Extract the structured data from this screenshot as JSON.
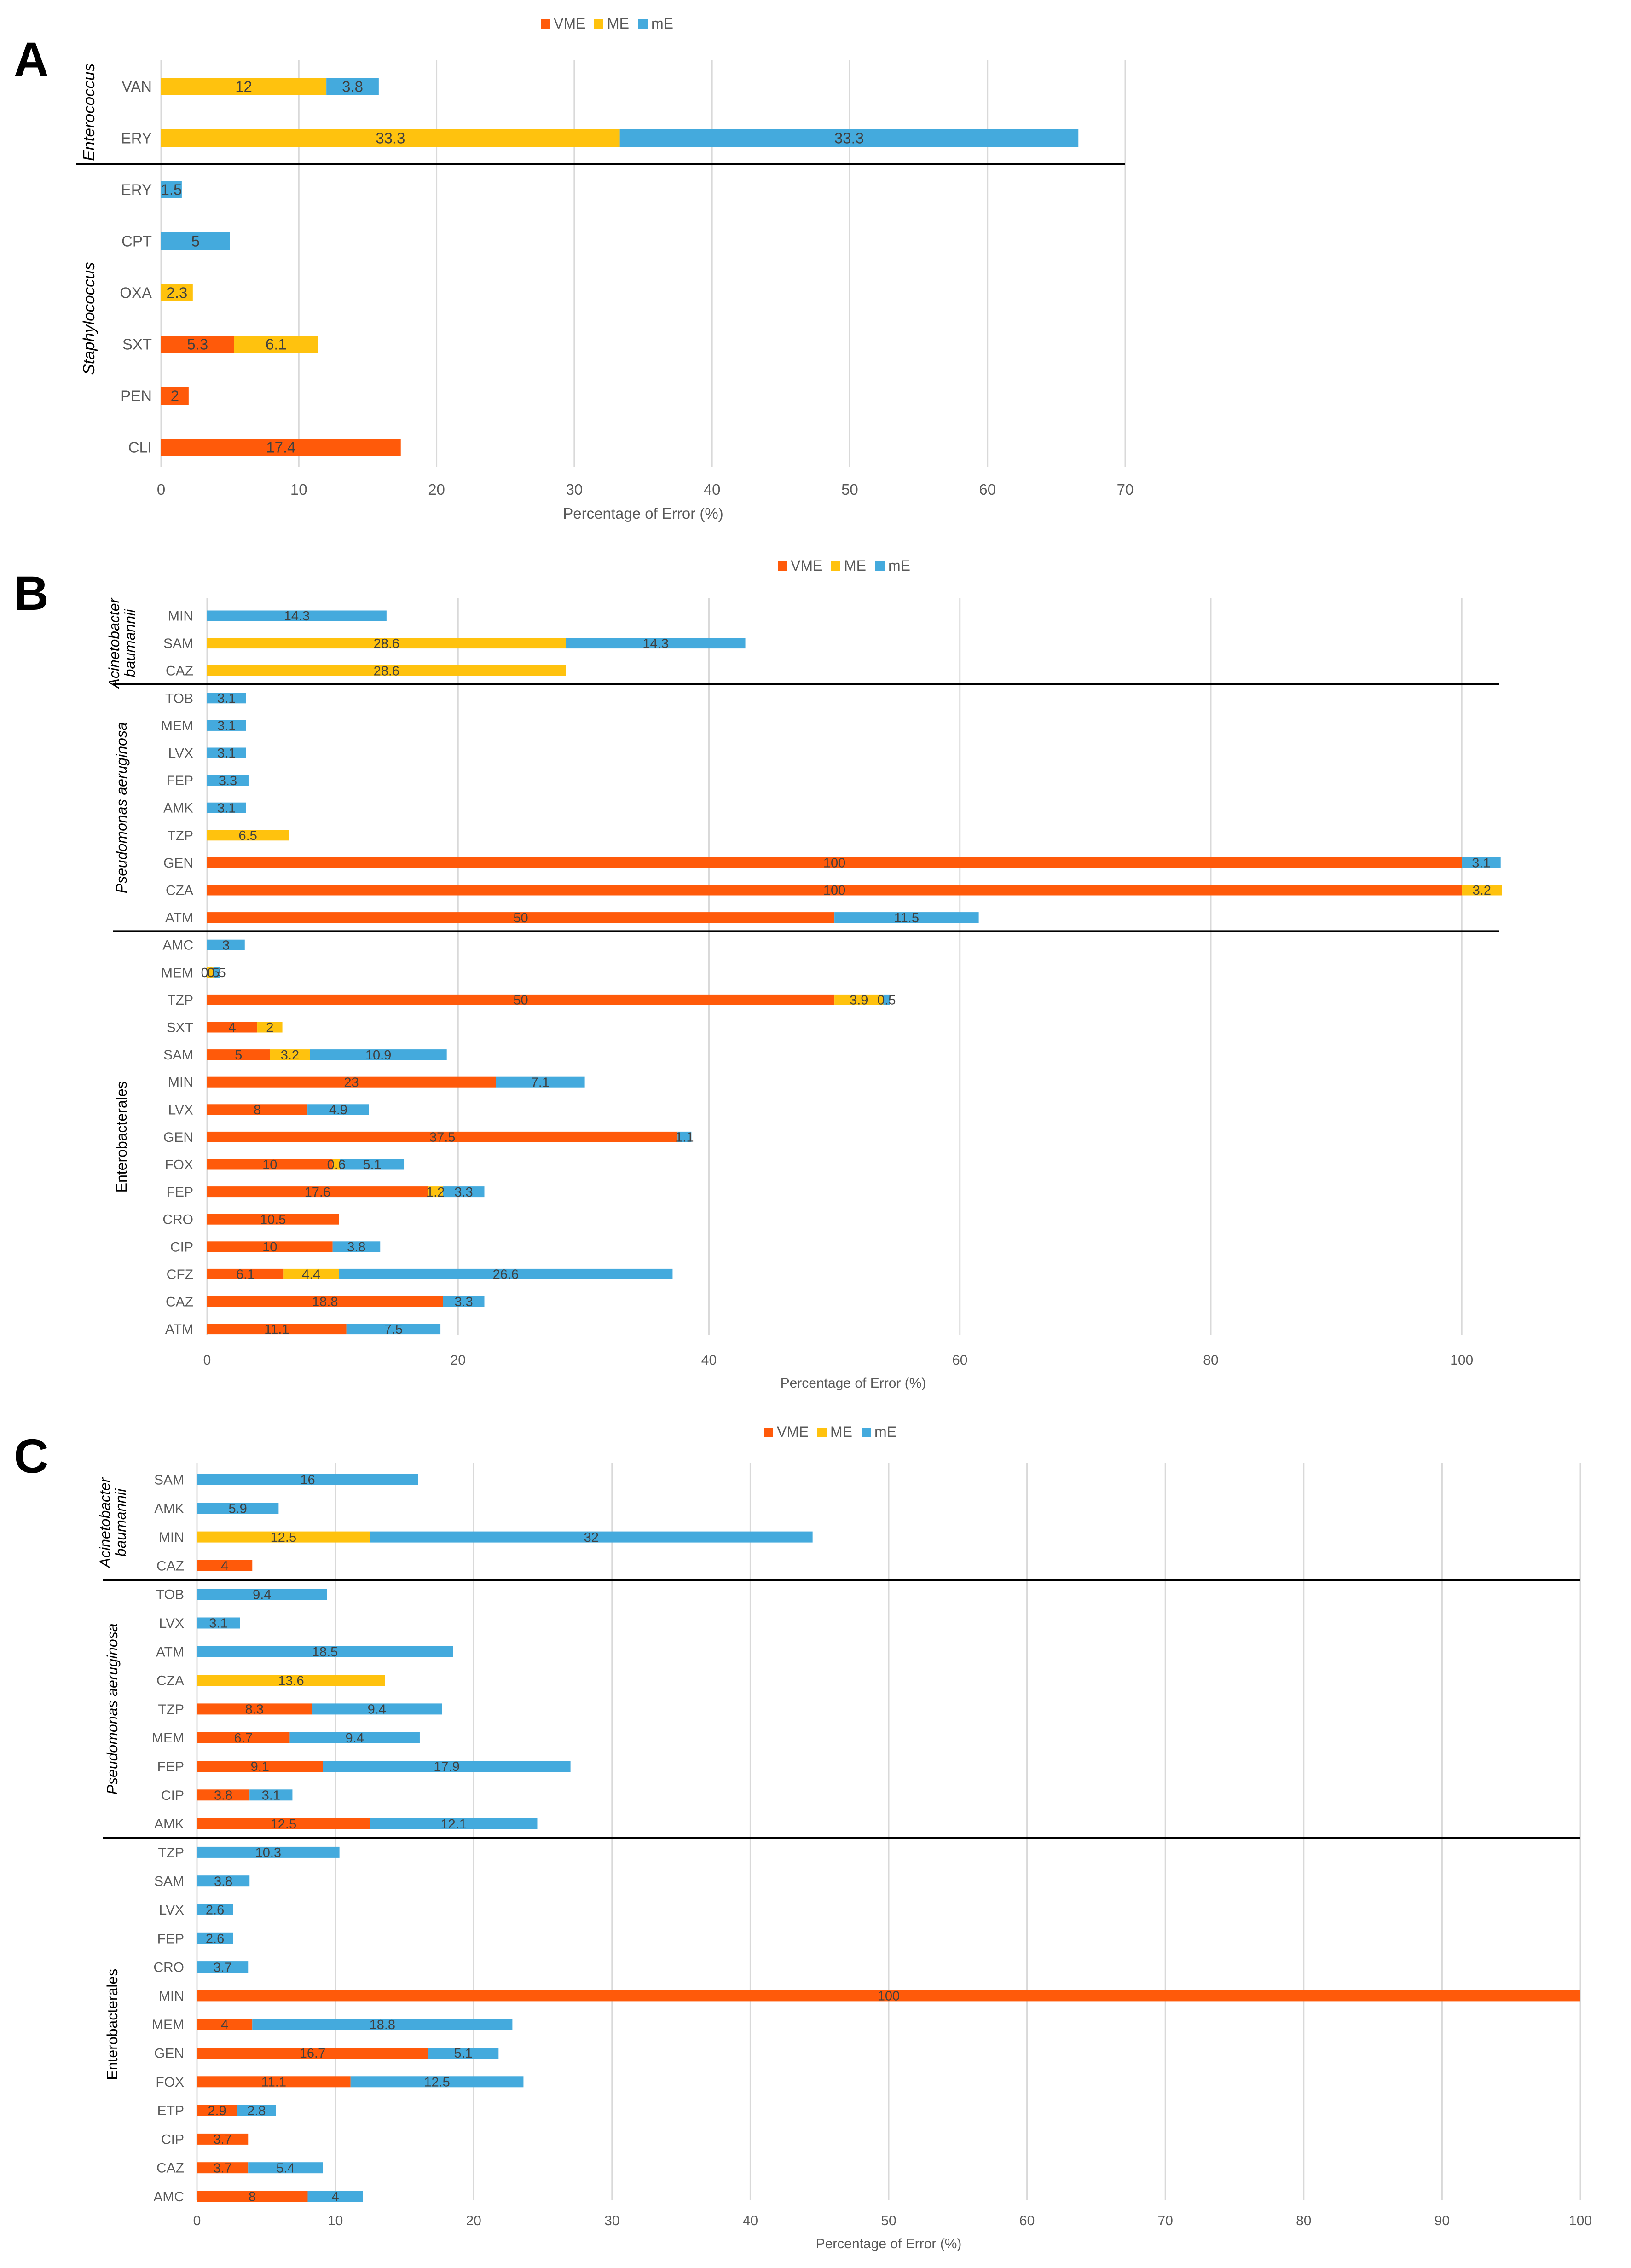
{
  "colors": {
    "VME": "#FF5a0a",
    "ME": "#FFC20E",
    "mE": "#44AADD",
    "grid": "#D9D9D9",
    "text": "#595959",
    "divider": "#000000"
  },
  "chart_data": [
    {
      "panel": "A",
      "type": "bar",
      "orientation": "horizontal",
      "stacked": true,
      "legend": [
        "VME",
        "ME",
        "mE"
      ],
      "legend_position": "top-center",
      "xlabel": "Percentage of Error (%)",
      "xlim": [
        0,
        70
      ],
      "xticks": [
        0,
        10,
        20,
        30,
        40,
        50,
        60,
        70
      ],
      "groups": [
        {
          "name": "Enterococcus",
          "italic": true,
          "rows": [
            {
              "label": "VAN",
              "VME": null,
              "ME": 12,
              "mE": 3.8
            },
            {
              "label": "ERY",
              "VME": null,
              "ME": 33.3,
              "mE": 33.3
            }
          ]
        },
        {
          "name": "Staphylococcus",
          "italic": true,
          "rows": [
            {
              "label": "ERY",
              "VME": null,
              "ME": null,
              "mE": 1.5
            },
            {
              "label": "CPT",
              "VME": null,
              "ME": null,
              "mE": 5
            },
            {
              "label": "OXA",
              "VME": null,
              "ME": 2.3,
              "mE": null
            },
            {
              "label": "SXT",
              "VME": 5.3,
              "ME": 6.1,
              "mE": null
            },
            {
              "label": "PEN",
              "VME": 2,
              "ME": null,
              "mE": null
            },
            {
              "label": "CLI",
              "VME": 17.4,
              "ME": null,
              "mE": null
            }
          ]
        }
      ]
    },
    {
      "panel": "B",
      "type": "bar",
      "orientation": "horizontal",
      "stacked": true,
      "legend": [
        "VME",
        "ME",
        "mE"
      ],
      "legend_position": "top-center",
      "xlabel": "Percentage of Error (%)",
      "xlim": [
        0,
        103
      ],
      "xticks": [
        0,
        20,
        40,
        60,
        80,
        100
      ],
      "groups": [
        {
          "name": "Acinetobacter baumannii",
          "lines": [
            "Acinetobacter",
            "baumannii"
          ],
          "italic": true,
          "rows": [
            {
              "label": "MIN",
              "VME": null,
              "ME": null,
              "mE": 14.3
            },
            {
              "label": "SAM",
              "VME": null,
              "ME": 28.6,
              "mE": 14.3
            },
            {
              "label": "CAZ",
              "VME": null,
              "ME": 28.6,
              "mE": null
            }
          ]
        },
        {
          "name": "Pseudomonas aeruginosa",
          "italic": true,
          "rows": [
            {
              "label": "TOB",
              "VME": null,
              "ME": null,
              "mE": 3.1
            },
            {
              "label": "MEM",
              "VME": null,
              "ME": null,
              "mE": 3.1
            },
            {
              "label": "LVX",
              "VME": null,
              "ME": null,
              "mE": 3.1
            },
            {
              "label": "FEP",
              "VME": null,
              "ME": null,
              "mE": 3.3
            },
            {
              "label": "AMK",
              "VME": null,
              "ME": null,
              "mE": 3.1
            },
            {
              "label": "TZP",
              "VME": null,
              "ME": 6.5,
              "mE": null
            },
            {
              "label": "GEN",
              "VME": 100,
              "ME": null,
              "mE": 3.1
            },
            {
              "label": "CZA",
              "VME": 100,
              "ME": 3.2,
              "mE": null
            },
            {
              "label": "ATM",
              "VME": 50,
              "ME": null,
              "mE": 11.5
            }
          ]
        },
        {
          "name": "Enterobacterales",
          "italic": false,
          "rows": [
            {
              "label": "AMC",
              "VME": null,
              "ME": null,
              "mE": 3
            },
            {
              "label": "MEM",
              "VME": null,
              "ME": 0.5,
              "mE": 0.5
            },
            {
              "label": "TZP",
              "VME": 50,
              "ME": 3.9,
              "mE": 0.5
            },
            {
              "label": "SXT",
              "VME": 4,
              "ME": 2,
              "mE": null
            },
            {
              "label": "SAM",
              "VME": 5,
              "ME": 3.2,
              "mE": 10.9
            },
            {
              "label": "MIN",
              "VME": 23,
              "ME": null,
              "mE": 7.1
            },
            {
              "label": "LVX",
              "VME": 8,
              "ME": null,
              "mE": 4.9
            },
            {
              "label": "GEN",
              "VME": 37.5,
              "ME": null,
              "mE": 1.1
            },
            {
              "label": "FOX",
              "VME": 10,
              "ME": 0.6,
              "mE": 5.1
            },
            {
              "label": "FEP",
              "VME": 17.6,
              "ME": 1.2,
              "mE": 3.3
            },
            {
              "label": "CRO",
              "VME": 10.5,
              "ME": null,
              "mE": null
            },
            {
              "label": "CIP",
              "VME": 10,
              "ME": null,
              "mE": 3.8
            },
            {
              "label": "CFZ",
              "VME": 6.1,
              "ME": 4.4,
              "mE": 26.6
            },
            {
              "label": "CAZ",
              "VME": 18.8,
              "ME": null,
              "mE": 3.3
            },
            {
              "label": "ATM",
              "VME": 11.1,
              "ME": null,
              "mE": 7.5
            }
          ]
        }
      ]
    },
    {
      "panel": "C",
      "type": "bar",
      "orientation": "horizontal",
      "stacked": true,
      "legend": [
        "VME",
        "ME",
        "mE"
      ],
      "legend_position": "top-center",
      "xlabel": "Percentage of Error (%)",
      "xlim": [
        0,
        100
      ],
      "xticks": [
        0,
        10,
        20,
        30,
        40,
        50,
        60,
        70,
        80,
        90,
        100
      ],
      "groups": [
        {
          "name": "Acinetobacter baumannii",
          "lines": [
            "Acinetobacter",
            "baumannii"
          ],
          "italic": true,
          "rows": [
            {
              "label": "SAM",
              "VME": null,
              "ME": null,
              "mE": 16
            },
            {
              "label": "AMK",
              "VME": null,
              "ME": null,
              "mE": 5.9
            },
            {
              "label": "MIN",
              "VME": null,
              "ME": 12.5,
              "mE": 32
            },
            {
              "label": "CAZ",
              "VME": 4,
              "ME": null,
              "mE": null
            }
          ]
        },
        {
          "name": "Pseudomonas aeruginosa",
          "italic": true,
          "rows": [
            {
              "label": "TOB",
              "VME": null,
              "ME": null,
              "mE": 9.4
            },
            {
              "label": "LVX",
              "VME": null,
              "ME": null,
              "mE": 3.1
            },
            {
              "label": "ATM",
              "VME": null,
              "ME": null,
              "mE": 18.5
            },
            {
              "label": "CZA",
              "VME": null,
              "ME": 13.6,
              "mE": null
            },
            {
              "label": "TZP",
              "VME": 8.3,
              "ME": null,
              "mE": 9.4
            },
            {
              "label": "MEM",
              "VME": 6.7,
              "ME": null,
              "mE": 9.4
            },
            {
              "label": "FEP",
              "VME": 9.1,
              "ME": null,
              "mE": 17.9
            },
            {
              "label": "CIP",
              "VME": 3.8,
              "ME": null,
              "mE": 3.1
            },
            {
              "label": "AMK",
              "VME": 12.5,
              "ME": null,
              "mE": 12.1
            }
          ]
        },
        {
          "name": "Enterobacterales",
          "italic": false,
          "rows": [
            {
              "label": "TZP",
              "VME": null,
              "ME": null,
              "mE": 10.3
            },
            {
              "label": "SAM",
              "VME": null,
              "ME": null,
              "mE": 3.8
            },
            {
              "label": "LVX",
              "VME": null,
              "ME": null,
              "mE": 2.6
            },
            {
              "label": "FEP",
              "VME": null,
              "ME": null,
              "mE": 2.6
            },
            {
              "label": "CRO",
              "VME": null,
              "ME": null,
              "mE": 3.7
            },
            {
              "label": "MIN",
              "VME": 100,
              "ME": null,
              "mE": null
            },
            {
              "label": "MEM",
              "VME": 4,
              "ME": null,
              "mE": 18.8
            },
            {
              "label": "GEN",
              "VME": 16.7,
              "ME": null,
              "mE": 5.1
            },
            {
              "label": "FOX",
              "VME": 11.1,
              "ME": null,
              "mE": 12.5
            },
            {
              "label": "ETP",
              "VME": 2.9,
              "ME": null,
              "mE": 2.8
            },
            {
              "label": "CIP",
              "VME": 3.7,
              "ME": null,
              "mE": null
            },
            {
              "label": "CAZ",
              "VME": 3.7,
              "ME": null,
              "mE": 5.4
            },
            {
              "label": "AMC",
              "VME": 8,
              "ME": null,
              "mE": 4
            }
          ]
        }
      ]
    }
  ]
}
